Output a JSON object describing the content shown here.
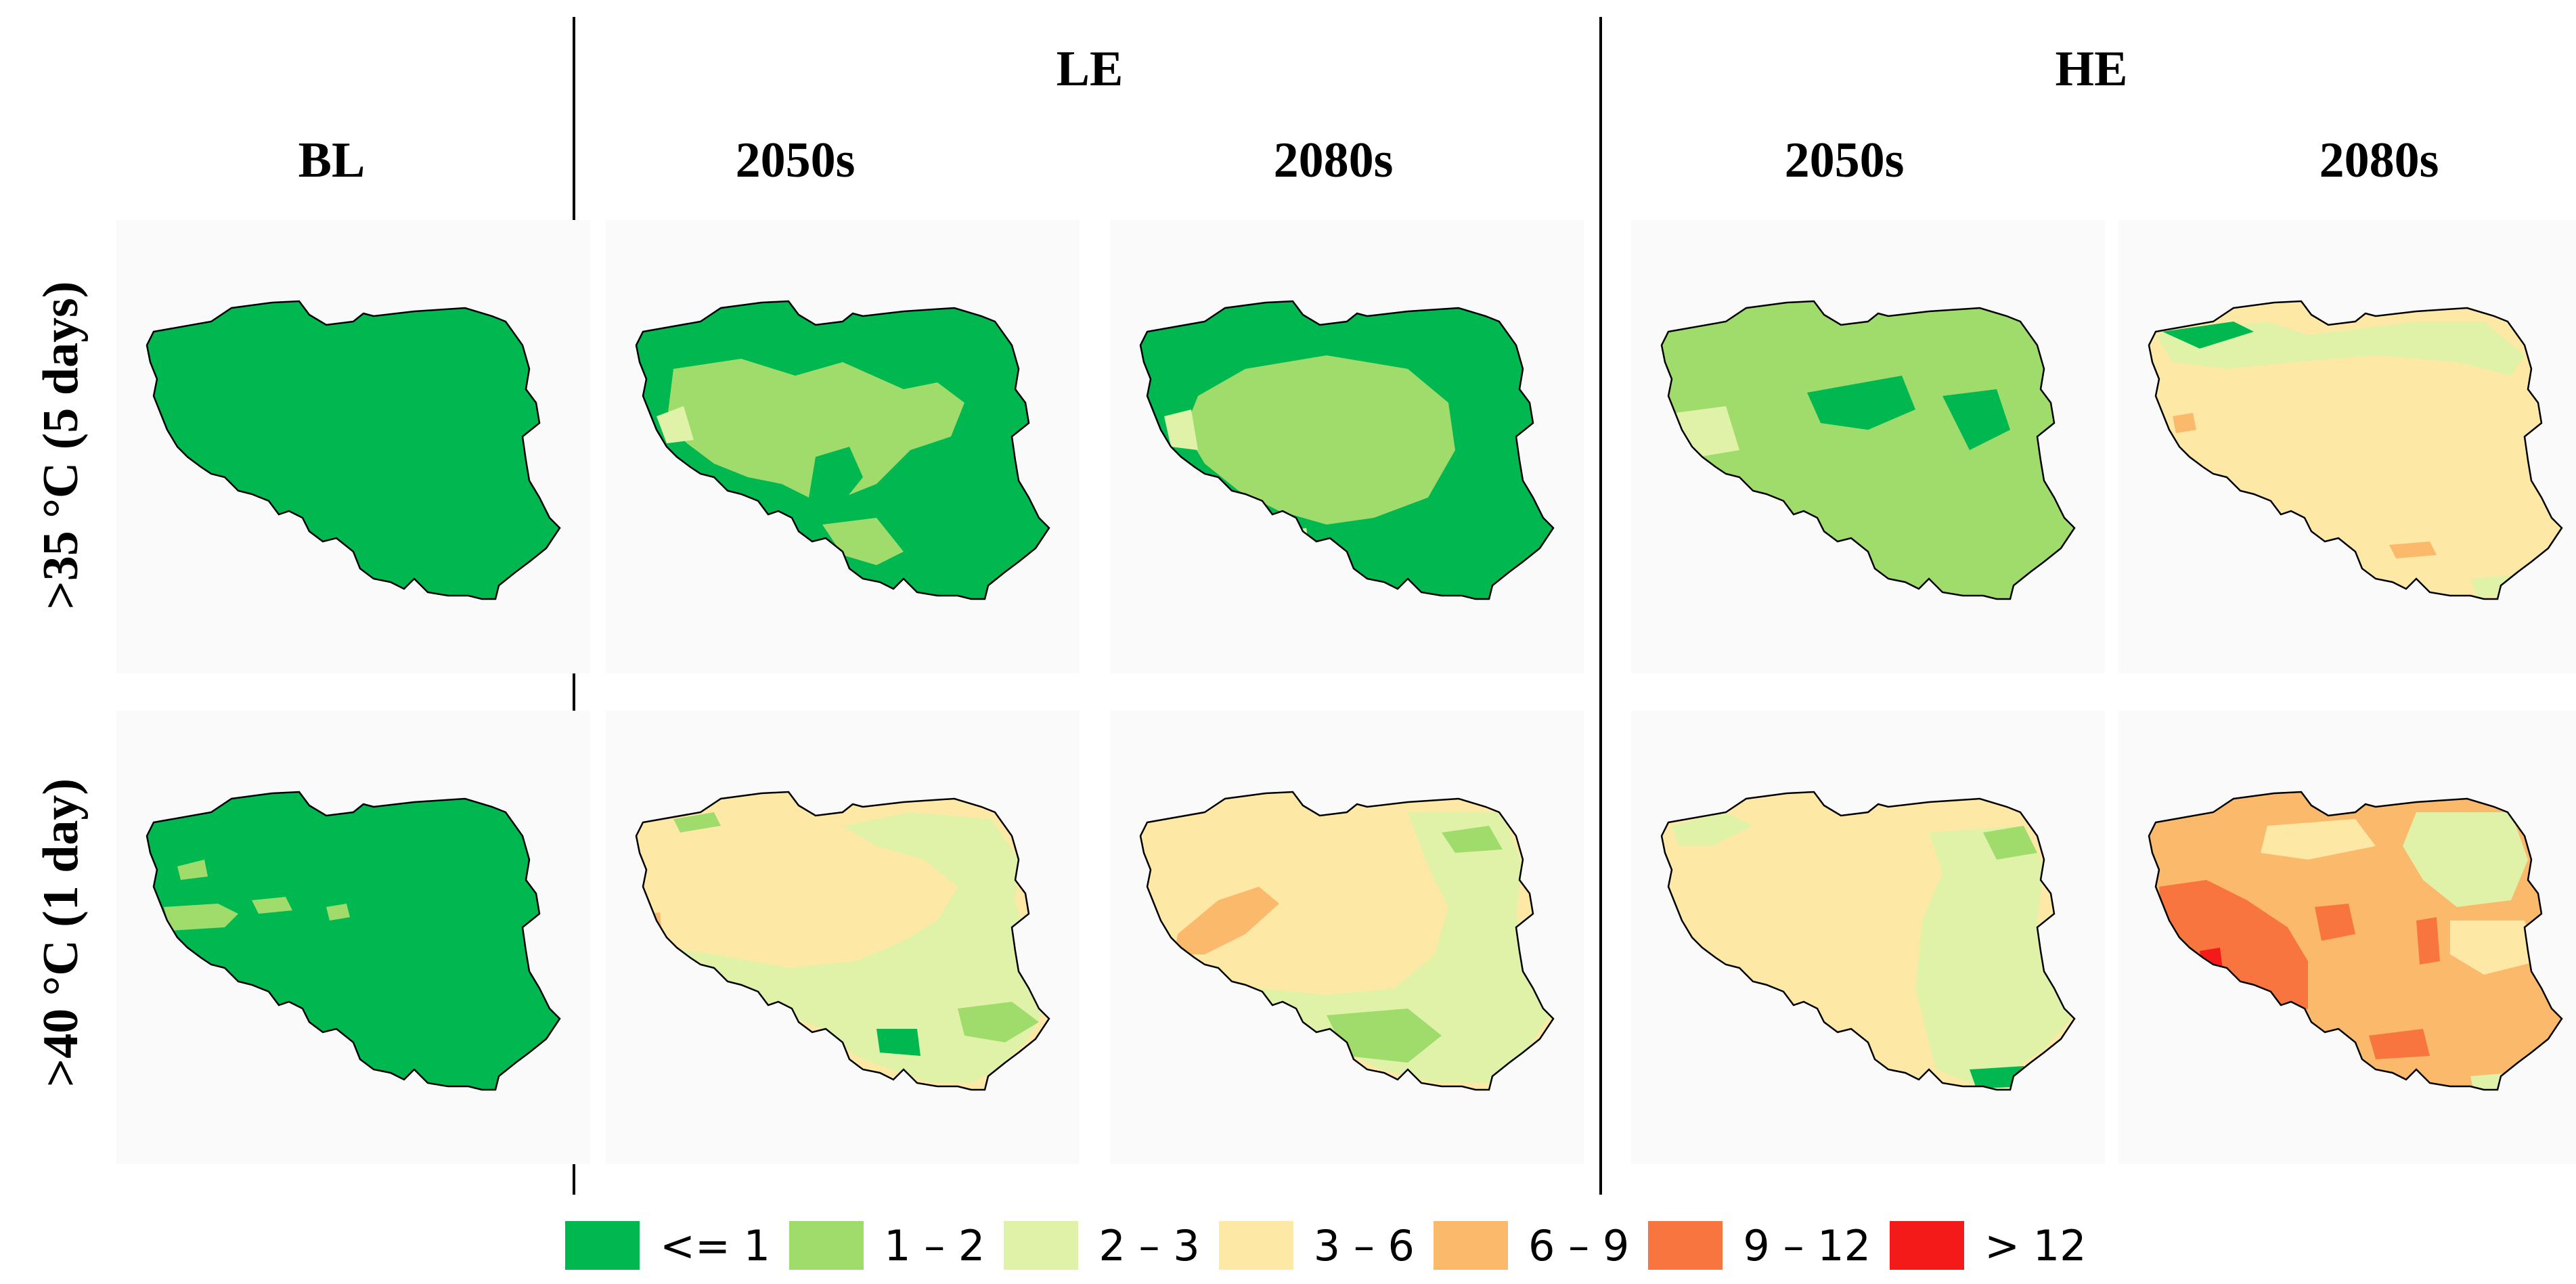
{
  "headers": {
    "bl": "BL",
    "le": "LE",
    "he": "HE",
    "le_2050": "2050s",
    "le_2080": "2080s",
    "he_2050": "2050s",
    "he_2080": "2080s"
  },
  "rows": {
    "r1": ">35 °C (5 days)",
    "r2": ">40 °C (1 day)"
  },
  "legend": [
    {
      "label": "<= 1",
      "color": "#00b84f"
    },
    {
      "label": "1 – 2",
      "color": "#9fdc6c"
    },
    {
      "label": "2 – 3",
      "color": "#dff2a8"
    },
    {
      "label": "3 – 6",
      "color": "#fde8a6"
    },
    {
      "label": "6 – 9",
      "color": "#fbb96b"
    },
    {
      "label": "9 – 12",
      "color": "#f9753f"
    },
    {
      "label": "> 12",
      "color": "#f41a1a"
    }
  ],
  "maps": [
    {
      "id": "r1-bl",
      "row": ">35 °C (5 days)",
      "scenario": "BL",
      "period": "",
      "base": "<= 1"
    },
    {
      "id": "r1-le2050",
      "row": ">35 °C (5 days)",
      "scenario": "LE",
      "period": "2050s",
      "base": "<= 1"
    },
    {
      "id": "r1-le2080",
      "row": ">35 °C (5 days)",
      "scenario": "LE",
      "period": "2080s",
      "base": "<= 1"
    },
    {
      "id": "r1-he2050",
      "row": ">35 °C (5 days)",
      "scenario": "HE",
      "period": "2050s",
      "base": "1 – 2"
    },
    {
      "id": "r1-he2080",
      "row": ">35 °C (5 days)",
      "scenario": "HE",
      "period": "2080s",
      "base": "3 – 6"
    },
    {
      "id": "r2-bl",
      "row": ">40 °C (1 day)",
      "scenario": "BL",
      "period": "",
      "base": "<= 1"
    },
    {
      "id": "r2-le2050",
      "row": ">40 °C (1 day)",
      "scenario": "LE",
      "period": "2050s",
      "base": "3 – 6"
    },
    {
      "id": "r2-le2080",
      "row": ">40 °C (1 day)",
      "scenario": "LE",
      "period": "2080s",
      "base": "3 – 6"
    },
    {
      "id": "r2-he2050",
      "row": ">40 °C (1 day)",
      "scenario": "HE",
      "period": "2050s",
      "base": "3 – 6"
    },
    {
      "id": "r2-he2080",
      "row": ">40 °C (1 day)",
      "scenario": "HE",
      "period": "2080s",
      "base": "6 – 9"
    }
  ]
}
